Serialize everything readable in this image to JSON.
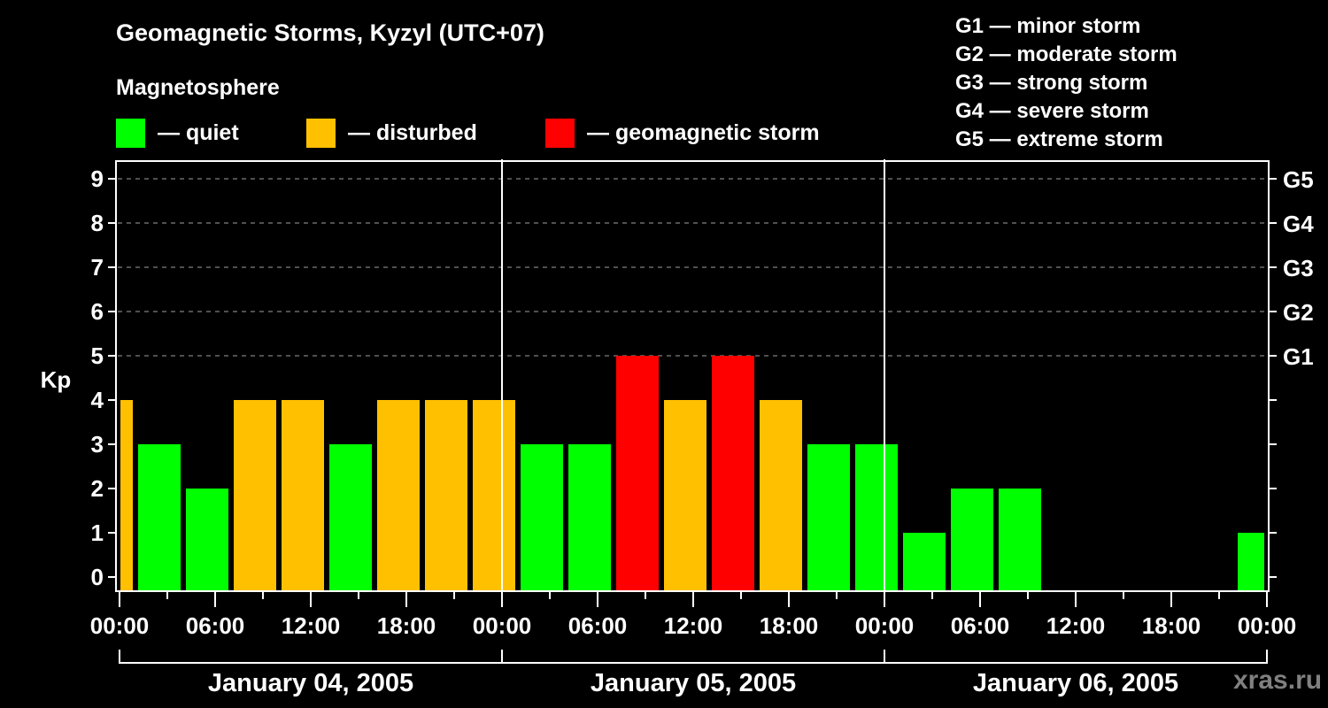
{
  "header": {
    "title": "Geomagnetic Storms, Kyzyl (UTC+07)",
    "subtitle": "Magnetosphere"
  },
  "legend": [
    {
      "label": "— quiet",
      "color": "#00ff00"
    },
    {
      "label": "— disturbed",
      "color": "#ffc000"
    },
    {
      "label": "— geomagnetic storm",
      "color": "#ff0000"
    }
  ],
  "g_levels": [
    "G1 — minor storm",
    "G2 — moderate storm",
    "G3 — strong storm",
    "G4 — severe storm",
    "G5 — extreme storm"
  ],
  "watermark": "xras.ru",
  "colors": {
    "background": "#000000",
    "axis": "#ffffff",
    "grid": "#808080",
    "quiet": "#00ff00",
    "disturbed": "#ffc000",
    "storm": "#ff0000"
  },
  "chart_data": {
    "type": "bar",
    "title": "Geomagnetic Storms, Kyzyl (UTC+07)",
    "xlabel": "",
    "ylabel": "Kp",
    "ylim": [
      0,
      9
    ],
    "yticks": [
      0,
      1,
      2,
      3,
      4,
      5,
      6,
      7,
      8,
      9
    ],
    "right_axis_labels": [
      {
        "kp": 5,
        "label": "G1"
      },
      {
        "kp": 6,
        "label": "G2"
      },
      {
        "kp": 7,
        "label": "G3"
      },
      {
        "kp": 8,
        "label": "G4"
      },
      {
        "kp": 9,
        "label": "G5"
      }
    ],
    "grid": "dashed horizontal at Kp 5-9",
    "x_tick_labels": [
      "00:00",
      "06:00",
      "12:00",
      "18:00",
      "00:00",
      "06:00",
      "12:00",
      "18:00",
      "00:00",
      "06:00",
      "12:00",
      "18:00",
      "00:00"
    ],
    "days": [
      "January 04, 2005",
      "January 05, 2005",
      "January 06, 2005"
    ],
    "interval_hours": 3,
    "bars": [
      {
        "slot": -1,
        "value": 4,
        "status": "disturbed"
      },
      {
        "slot": 0,
        "value": 3,
        "status": "quiet"
      },
      {
        "slot": 1,
        "value": 2,
        "status": "quiet"
      },
      {
        "slot": 2,
        "value": 4,
        "status": "disturbed"
      },
      {
        "slot": 3,
        "value": 4,
        "status": "disturbed"
      },
      {
        "slot": 4,
        "value": 3,
        "status": "quiet"
      },
      {
        "slot": 5,
        "value": 4,
        "status": "disturbed"
      },
      {
        "slot": 6,
        "value": 4,
        "status": "disturbed"
      },
      {
        "slot": 7,
        "value": 4,
        "status": "disturbed"
      },
      {
        "slot": 8,
        "value": 3,
        "status": "quiet"
      },
      {
        "slot": 9,
        "value": 3,
        "status": "quiet"
      },
      {
        "slot": 10,
        "value": 5,
        "status": "storm"
      },
      {
        "slot": 11,
        "value": 4,
        "status": "disturbed"
      },
      {
        "slot": 12,
        "value": 5,
        "status": "storm"
      },
      {
        "slot": 13,
        "value": 4,
        "status": "disturbed"
      },
      {
        "slot": 14,
        "value": 3,
        "status": "quiet"
      },
      {
        "slot": 15,
        "value": 3,
        "status": "quiet"
      },
      {
        "slot": 16,
        "value": 1,
        "status": "quiet"
      },
      {
        "slot": 17,
        "value": 2,
        "status": "quiet"
      },
      {
        "slot": 18,
        "value": 2,
        "status": "quiet"
      },
      {
        "slot": 23,
        "value": 1,
        "status": "quiet"
      }
    ],
    "legend": [
      "quiet",
      "disturbed",
      "geomagnetic storm"
    ],
    "legend_position": "top"
  }
}
